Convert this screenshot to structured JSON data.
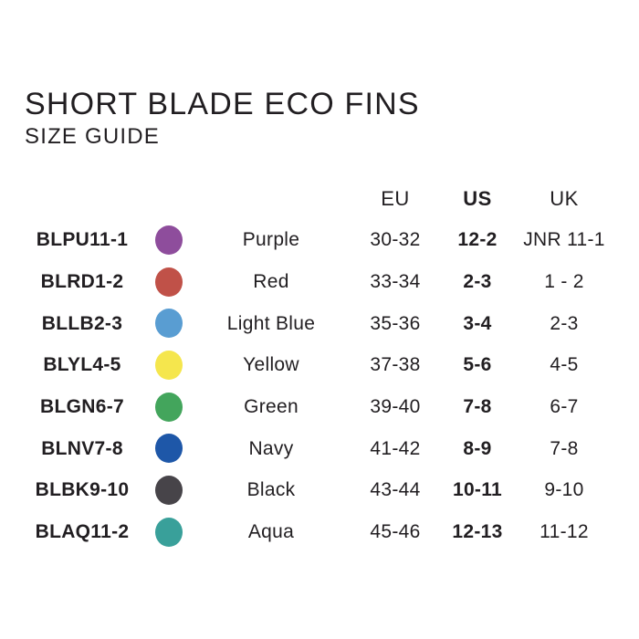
{
  "title": "SHORT BLADE ECO FINS",
  "subtitle": "SIZE GUIDE",
  "colors": {
    "background": "#ffffff",
    "text": "#211e21"
  },
  "table_headers": {
    "eu": "EU",
    "us": "US",
    "uk": "UK"
  },
  "chart_data": {
    "type": "table",
    "title": "SHORT BLADE ECO FINS",
    "subtitle": "SIZE GUIDE",
    "columns": [
      "product_code",
      "swatch_color",
      "color_name",
      "EU",
      "US",
      "UK"
    ],
    "rows": [
      {
        "code": "BLPU11-1",
        "color_name": "Purple",
        "swatch_hex": "#8e4d9c",
        "eu": "30-32",
        "us": "12-2",
        "uk": "JNR 11-1"
      },
      {
        "code": "BLRD1-2",
        "color_name": "Red",
        "swatch_hex": "#c05148",
        "eu": "33-34",
        "us": "2-3",
        "uk": "1 - 2"
      },
      {
        "code": "BLLB2-3",
        "color_name": "Light Blue",
        "swatch_hex": "#599dd2",
        "eu": "35-36",
        "us": "3-4",
        "uk": "2-3"
      },
      {
        "code": "BLYL4-5",
        "color_name": "Yellow",
        "swatch_hex": "#f5e64d",
        "eu": "37-38",
        "us": "5-6",
        "uk": "4-5"
      },
      {
        "code": "BLGN6-7",
        "color_name": "Green",
        "swatch_hex": "#43a55c",
        "eu": "39-40",
        "us": "7-8",
        "uk": "6-7"
      },
      {
        "code": "BLNV7-8",
        "color_name": "Navy",
        "swatch_hex": "#1e57a8",
        "eu": "41-42",
        "us": "8-9",
        "uk": "7-8"
      },
      {
        "code": "BLBK9-10",
        "color_name": "Black",
        "swatch_hex": "#474449",
        "eu": "43-44",
        "us": "10-11",
        "uk": "9-10"
      },
      {
        "code": "BLAQ11-2",
        "color_name": "Aqua",
        "swatch_hex": "#39a09a",
        "eu": "45-46",
        "us": "12-13",
        "uk": "11-12"
      }
    ]
  }
}
